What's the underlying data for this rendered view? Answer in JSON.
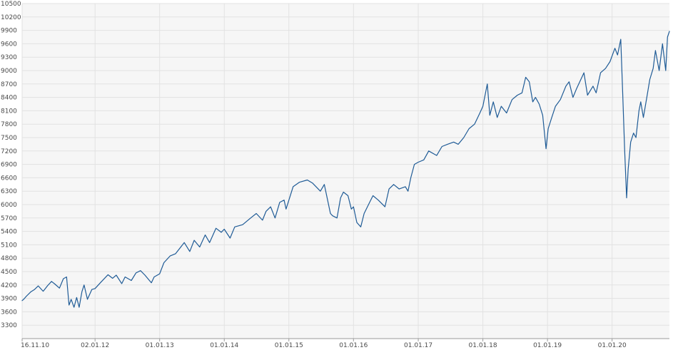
{
  "chart_data": {
    "type": "line",
    "title": "",
    "xlabel": "",
    "ylabel": "",
    "xlim": [
      "2010-11-16",
      "2020-11-20"
    ],
    "ylim": [
      3000,
      10500
    ],
    "y_ticks": [
      3300,
      3600,
      3900,
      4200,
      4500,
      4800,
      5100,
      5400,
      5700,
      6000,
      6300,
      6600,
      6900,
      7200,
      7500,
      7800,
      8100,
      8400,
      8700,
      9000,
      9300,
      9600,
      9900,
      10200,
      10500
    ],
    "x_ticks": [
      {
        "label": "16.11.10",
        "date": "2010-11-16"
      },
      {
        "label": "02.01.12",
        "date": "2012-01-02"
      },
      {
        "label": "01.01.13",
        "date": "2013-01-01"
      },
      {
        "label": "01.01.14",
        "date": "2014-01-01"
      },
      {
        "label": "01.01.15",
        "date": "2015-01-01"
      },
      {
        "label": "01.01.16",
        "date": "2016-01-01"
      },
      {
        "label": "01.01.17",
        "date": "2017-01-01"
      },
      {
        "label": "01.01.18",
        "date": "2018-01-01"
      },
      {
        "label": "01.01.19",
        "date": "2019-01-01"
      },
      {
        "label": "01.01.20",
        "date": "2020-01-01"
      }
    ],
    "grid": true,
    "legend": "none",
    "colors": {
      "line": "#1f5b96",
      "grid": "#e2e2e2",
      "plot_background": "#f6f6f6",
      "axis_text": "#4a4a4a"
    },
    "series": [
      {
        "points": [
          [
            "2010-11-16",
            3850
          ],
          [
            "2010-11-25",
            3880
          ],
          [
            "2010-12-10",
            3950
          ],
          [
            "2011-01-05",
            4050
          ],
          [
            "2011-01-25",
            4100
          ],
          [
            "2011-02-15",
            4180
          ],
          [
            "2011-03-15",
            4060
          ],
          [
            "2011-04-10",
            4190
          ],
          [
            "2011-05-01",
            4280
          ],
          [
            "2011-05-20",
            4220
          ],
          [
            "2011-06-15",
            4130
          ],
          [
            "2011-07-07",
            4340
          ],
          [
            "2011-07-25",
            4380
          ],
          [
            "2011-08-08",
            3750
          ],
          [
            "2011-08-20",
            3880
          ],
          [
            "2011-09-05",
            3700
          ],
          [
            "2011-09-20",
            3920
          ],
          [
            "2011-10-04",
            3700
          ],
          [
            "2011-10-20",
            4050
          ],
          [
            "2011-11-01",
            4200
          ],
          [
            "2011-11-20",
            3880
          ],
          [
            "2011-12-15",
            4100
          ],
          [
            "2012-01-02",
            4120
          ],
          [
            "2012-02-01",
            4250
          ],
          [
            "2012-03-15",
            4430
          ],
          [
            "2012-04-10",
            4350
          ],
          [
            "2012-05-01",
            4420
          ],
          [
            "2012-06-01",
            4230
          ],
          [
            "2012-06-20",
            4380
          ],
          [
            "2012-07-25",
            4300
          ],
          [
            "2012-08-20",
            4470
          ],
          [
            "2012-09-15",
            4520
          ],
          [
            "2012-10-10",
            4420
          ],
          [
            "2012-11-15",
            4250
          ],
          [
            "2012-12-01",
            4380
          ],
          [
            "2013-01-01",
            4450
          ],
          [
            "2013-01-25",
            4700
          ],
          [
            "2013-03-01",
            4850
          ],
          [
            "2013-04-01",
            4900
          ],
          [
            "2013-05-20",
            5150
          ],
          [
            "2013-06-20",
            4950
          ],
          [
            "2013-07-15",
            5200
          ],
          [
            "2013-08-15",
            5050
          ],
          [
            "2013-09-15",
            5320
          ],
          [
            "2013-10-10",
            5150
          ],
          [
            "2013-11-15",
            5470
          ],
          [
            "2013-12-15",
            5380
          ],
          [
            "2014-01-01",
            5450
          ],
          [
            "2014-02-03",
            5250
          ],
          [
            "2014-03-01",
            5500
          ],
          [
            "2014-04-15",
            5550
          ],
          [
            "2014-05-30",
            5700
          ],
          [
            "2014-07-01",
            5800
          ],
          [
            "2014-08-05",
            5650
          ],
          [
            "2014-08-25",
            5850
          ],
          [
            "2014-09-20",
            5950
          ],
          [
            "2014-10-15",
            5700
          ],
          [
            "2014-11-10",
            6050
          ],
          [
            "2014-12-05",
            6100
          ],
          [
            "2014-12-16",
            5900
          ],
          [
            "2015-01-01",
            6100
          ],
          [
            "2015-01-25",
            6400
          ],
          [
            "2015-03-01",
            6500
          ],
          [
            "2015-04-15",
            6550
          ],
          [
            "2015-05-15",
            6480
          ],
          [
            "2015-06-28",
            6300
          ],
          [
            "2015-07-20",
            6450
          ],
          [
            "2015-08-24",
            5800
          ],
          [
            "2015-09-05",
            5750
          ],
          [
            "2015-09-30",
            5700
          ],
          [
            "2015-10-20",
            6150
          ],
          [
            "2015-11-05",
            6280
          ],
          [
            "2015-12-01",
            6200
          ],
          [
            "2015-12-20",
            5900
          ],
          [
            "2016-01-01",
            5950
          ],
          [
            "2016-01-20",
            5600
          ],
          [
            "2016-02-11",
            5500
          ],
          [
            "2016-03-01",
            5800
          ],
          [
            "2016-04-01",
            6050
          ],
          [
            "2016-04-20",
            6200
          ],
          [
            "2016-05-20",
            6100
          ],
          [
            "2016-06-27",
            5950
          ],
          [
            "2016-07-20",
            6350
          ],
          [
            "2016-08-15",
            6450
          ],
          [
            "2016-09-15",
            6350
          ],
          [
            "2016-10-20",
            6400
          ],
          [
            "2016-11-04",
            6300
          ],
          [
            "2016-11-20",
            6600
          ],
          [
            "2016-12-10",
            6900
          ],
          [
            "2017-01-01",
            6950
          ],
          [
            "2017-02-01",
            7000
          ],
          [
            "2017-03-01",
            7200
          ],
          [
            "2017-04-15",
            7100
          ],
          [
            "2017-05-15",
            7300
          ],
          [
            "2017-06-15",
            7350
          ],
          [
            "2017-07-20",
            7400
          ],
          [
            "2017-08-15",
            7350
          ],
          [
            "2017-09-15",
            7500
          ],
          [
            "2017-10-15",
            7700
          ],
          [
            "2017-11-15",
            7800
          ],
          [
            "2017-12-15",
            8050
          ],
          [
            "2018-01-01",
            8200
          ],
          [
            "2018-01-26",
            8700
          ],
          [
            "2018-02-09",
            8000
          ],
          [
            "2018-03-01",
            8300
          ],
          [
            "2018-03-23",
            7950
          ],
          [
            "2018-04-15",
            8200
          ],
          [
            "2018-05-15",
            8050
          ],
          [
            "2018-06-15",
            8350
          ],
          [
            "2018-07-15",
            8450
          ],
          [
            "2018-08-10",
            8500
          ],
          [
            "2018-08-31",
            8850
          ],
          [
            "2018-09-20",
            8750
          ],
          [
            "2018-10-10",
            8300
          ],
          [
            "2018-10-25",
            8400
          ],
          [
            "2018-11-15",
            8250
          ],
          [
            "2018-12-05",
            8000
          ],
          [
            "2018-12-24",
            7250
          ],
          [
            "2019-01-05",
            7700
          ],
          [
            "2019-01-25",
            7950
          ],
          [
            "2019-02-15",
            8200
          ],
          [
            "2019-03-15",
            8350
          ],
          [
            "2019-04-15",
            8650
          ],
          [
            "2019-05-03",
            8750
          ],
          [
            "2019-05-25",
            8400
          ],
          [
            "2019-06-15",
            8600
          ],
          [
            "2019-07-26",
            8950
          ],
          [
            "2019-08-15",
            8450
          ],
          [
            "2019-09-15",
            8650
          ],
          [
            "2019-10-03",
            8500
          ],
          [
            "2019-10-28",
            8950
          ],
          [
            "2019-11-25",
            9050
          ],
          [
            "2019-12-20",
            9200
          ],
          [
            "2020-01-17",
            9500
          ],
          [
            "2020-02-01",
            9350
          ],
          [
            "2020-02-19",
            9700
          ],
          [
            "2020-03-01",
            8500
          ],
          [
            "2020-03-12",
            7200
          ],
          [
            "2020-03-23",
            6150
          ],
          [
            "2020-04-01",
            6800
          ],
          [
            "2020-04-15",
            7400
          ],
          [
            "2020-05-01",
            7600
          ],
          [
            "2020-05-15",
            7500
          ],
          [
            "2020-06-01",
            8100
          ],
          [
            "2020-06-11",
            8300
          ],
          [
            "2020-06-26",
            7950
          ],
          [
            "2020-07-15",
            8400
          ],
          [
            "2020-08-01",
            8800
          ],
          [
            "2020-08-20",
            9050
          ],
          [
            "2020-09-02",
            9450
          ],
          [
            "2020-09-23",
            9000
          ],
          [
            "2020-10-12",
            9600
          ],
          [
            "2020-10-30",
            9000
          ],
          [
            "2020-11-09",
            9750
          ],
          [
            "2020-11-20",
            9880
          ]
        ]
      }
    ]
  }
}
